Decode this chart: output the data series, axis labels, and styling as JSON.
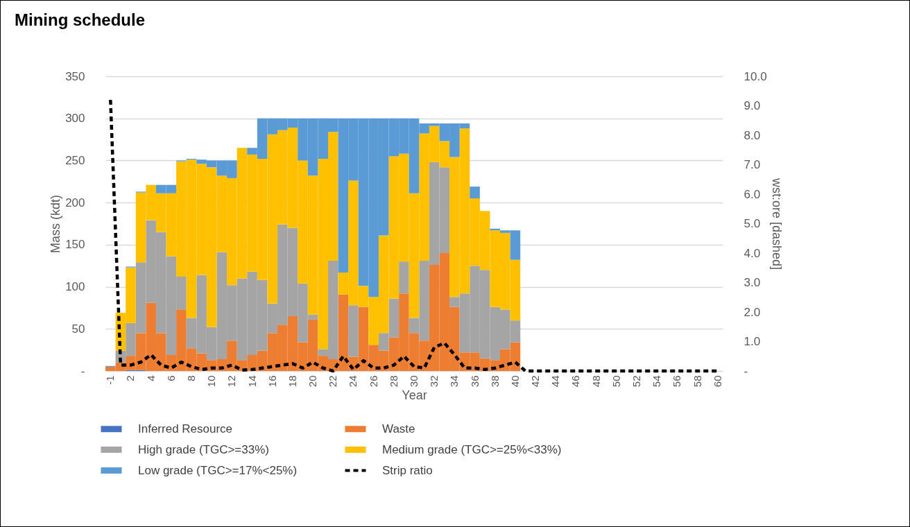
{
  "chart_data": {
    "type": "bar",
    "title": "Mining schedule",
    "xlabel": "Year",
    "ylabel": "Mass (kdt)",
    "y2label": "wst:ore [dashed]",
    "stacked": true,
    "grid": "y",
    "legend": "bottom",
    "categories": [
      "-1",
      null,
      "2",
      null,
      "4",
      null,
      "6",
      null,
      "8",
      null,
      "10",
      null,
      "12",
      null,
      "14",
      null,
      "16",
      null,
      "18",
      null,
      "20",
      null,
      "22",
      null,
      "24",
      null,
      "26",
      null,
      "28",
      null,
      "30",
      null,
      "32",
      null,
      "34",
      null,
      "36",
      null,
      "38",
      null,
      "40",
      null,
      "42",
      null,
      "44",
      null,
      "46",
      null,
      "48",
      null,
      "50",
      null,
      "52",
      null,
      "54",
      null,
      "56",
      null,
      "58",
      null,
      "60"
    ],
    "ylim": [
      0,
      350
    ],
    "yticks": [
      {
        "value": 0,
        "label": "-"
      },
      50,
      100,
      150,
      200,
      250,
      300,
      350
    ],
    "y2lim": [
      0,
      10
    ],
    "y2ticks": [
      {
        "value": 0,
        "label": "-"
      },
      {
        "value": 1,
        "label": "1.0"
      },
      {
        "value": 2,
        "label": "2.0"
      },
      {
        "value": 3,
        "label": "3.0"
      },
      {
        "value": 4,
        "label": "4.0"
      },
      {
        "value": 5,
        "label": "5.0"
      },
      {
        "value": 6,
        "label": "6.0"
      },
      {
        "value": 7,
        "label": "7.0"
      },
      {
        "value": 8,
        "label": "8.0"
      },
      {
        "value": 9,
        "label": "9.0"
      },
      {
        "value": 10,
        "label": "10.0"
      }
    ],
    "series": [
      {
        "name": "Inferred Resource",
        "color": "#4472c4",
        "values": [
          0,
          0,
          1,
          1,
          0,
          0,
          0,
          0,
          0,
          0,
          0,
          0,
          0,
          0,
          0,
          0,
          0,
          0,
          0,
          0,
          0,
          0,
          0,
          0,
          0,
          0,
          0,
          0,
          0,
          0,
          0,
          0,
          0,
          0,
          0,
          0,
          0,
          0,
          0,
          0,
          0,
          null,
          null,
          null,
          null,
          null,
          null,
          null,
          null,
          null,
          null,
          null,
          null,
          null,
          null,
          null,
          null,
          null,
          null,
          null,
          null
        ]
      },
      {
        "name": "Waste",
        "color": "#ed7d31",
        "values": [
          5,
          10,
          17,
          44,
          81,
          45,
          19,
          73,
          27,
          21,
          13,
          14,
          36,
          13,
          19,
          24,
          45,
          55,
          65,
          34,
          61,
          18,
          14,
          91,
          17,
          76,
          31,
          24,
          40,
          92,
          45,
          36,
          126,
          140,
          76,
          22,
          22,
          15,
          13,
          26,
          34,
          null,
          null,
          null,
          null,
          null,
          null,
          null,
          null,
          null,
          null,
          null,
          null,
          null,
          null,
          null,
          null,
          null,
          null,
          null,
          null
        ]
      },
      {
        "name": "High grade (TGC>=33%)",
        "color": "#a5a5a5",
        "values": [
          0,
          14,
          39,
          84,
          98,
          120,
          117,
          39,
          36,
          93,
          39,
          127,
          66,
          97,
          99,
          84,
          35,
          119,
          105,
          70,
          6,
          8,
          117,
          0,
          61,
          0,
          0,
          21,
          46,
          38,
          18,
          95,
          122,
          102,
          12,
          70,
          103,
          105,
          63,
          47,
          26,
          null,
          null,
          null,
          null,
          null,
          null,
          null,
          null,
          null,
          null,
          null,
          null,
          null,
          null,
          null,
          null,
          null,
          null,
          null,
          null
        ]
      },
      {
        "name": "Medium grade (TGC>=25%<33%)",
        "color": "#ffc000",
        "values": [
          0,
          45,
          66,
          83,
          42,
          46,
          75,
          137,
          188,
          132,
          190,
          91,
          127,
          155,
          139,
          144,
          201,
          112,
          119,
          146,
          165,
          226,
          153,
          26,
          148,
          25,
          57,
          116,
          169,
          128,
          148,
          151,
          43,
          31,
          166,
          196,
          80,
          70,
          91,
          91,
          72,
          null,
          null,
          null,
          null,
          null,
          null,
          null,
          null,
          null,
          null,
          null,
          null,
          null,
          null,
          null,
          null,
          null,
          null,
          null,
          null
        ]
      },
      {
        "name": "Low grade (TGC>=17%<25%)",
        "color": "#5b9bd5",
        "values": [
          1,
          0,
          1,
          1,
          0,
          10,
          10,
          1,
          1,
          5,
          8,
          18,
          21,
          0,
          8,
          48,
          19,
          14,
          11,
          50,
          68,
          48,
          16,
          183,
          74,
          199,
          212,
          139,
          45,
          42,
          89,
          12,
          3,
          21,
          40,
          6,
          14,
          0,
          2,
          3,
          35,
          null,
          null,
          null,
          null,
          null,
          null,
          null,
          null,
          null,
          null,
          null,
          null,
          null,
          null,
          null,
          null,
          null,
          null,
          null,
          null
        ]
      },
      {
        "name": "Strip ratio",
        "type": "line",
        "axis": "y2",
        "line_style": "dashed",
        "color": "#000000",
        "values": [
          9.2,
          0.2,
          0.2,
          0.3,
          0.55,
          0.2,
          0.1,
          0.3,
          0.15,
          0.05,
          0.1,
          0.1,
          0.2,
          0.03,
          0.05,
          0.1,
          0.15,
          0.2,
          0.25,
          0.1,
          0.3,
          0.1,
          0,
          0.5,
          0.05,
          0.35,
          0.1,
          0.1,
          0.2,
          0.5,
          0.15,
          0.1,
          0.8,
          0.95,
          0.55,
          0.1,
          0.1,
          0.05,
          0.1,
          0.2,
          0.3,
          0,
          0,
          0,
          0,
          0,
          0,
          0,
          0,
          0,
          0,
          0,
          0,
          0,
          0,
          0,
          0,
          0,
          0,
          0,
          0
        ]
      }
    ]
  }
}
